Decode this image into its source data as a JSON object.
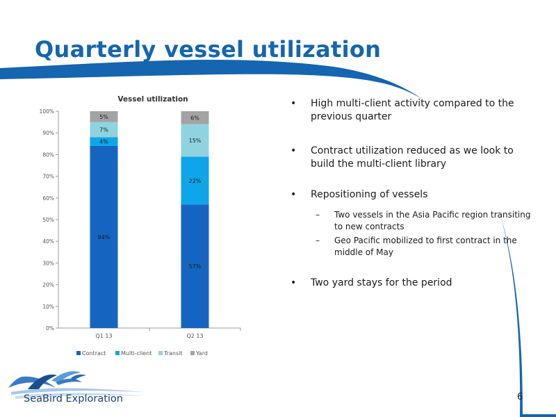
{
  "slide": {
    "title": "Quarterly vessel utilization",
    "page_number": "6",
    "logo_text": "SeaBird Exploration"
  },
  "colors": {
    "brand_blue": "#1565b0",
    "contract": "#1565c0",
    "multi_client": "#0ea5e9",
    "transit": "#8fd3e0",
    "yard": "#a3a3a3"
  },
  "bullets": [
    {
      "text": "High multi-client activity compared to the previous quarter",
      "sub": []
    },
    {
      "text": "Contract utilization reduced as we look to build the multi-client library",
      "sub": []
    },
    {
      "text": "Repositioning of vessels",
      "sub": [
        "Two vessels in the Asia Pacific region transiting to new contracts",
        "Geo Pacific mobilized to first contract in the middle of May"
      ]
    },
    {
      "text": "Two yard stays for the period",
      "sub": []
    }
  ],
  "chart_data": {
    "type": "bar",
    "stacked": true,
    "title": "Vessel utilization",
    "categories": [
      "Q1 13",
      "Q2 13"
    ],
    "series": [
      {
        "name": "Contract",
        "values": [
          84,
          57
        ],
        "labels": [
          "84%",
          "57%"
        ]
      },
      {
        "name": "Multi-client",
        "values": [
          4,
          22
        ],
        "labels": [
          "4%",
          "22%"
        ]
      },
      {
        "name": "Transit",
        "values": [
          7,
          15
        ],
        "labels": [
          "7%",
          "15%"
        ]
      },
      {
        "name": "Yard",
        "values": [
          5,
          6
        ],
        "labels": [
          "5%",
          "6%"
        ]
      }
    ],
    "yticks": [
      "0%",
      "10%",
      "20%",
      "30%",
      "40%",
      "50%",
      "60%",
      "70%",
      "80%",
      "90%",
      "100%"
    ],
    "ylim": [
      0,
      100
    ],
    "legend": "bottom",
    "grid": false
  }
}
